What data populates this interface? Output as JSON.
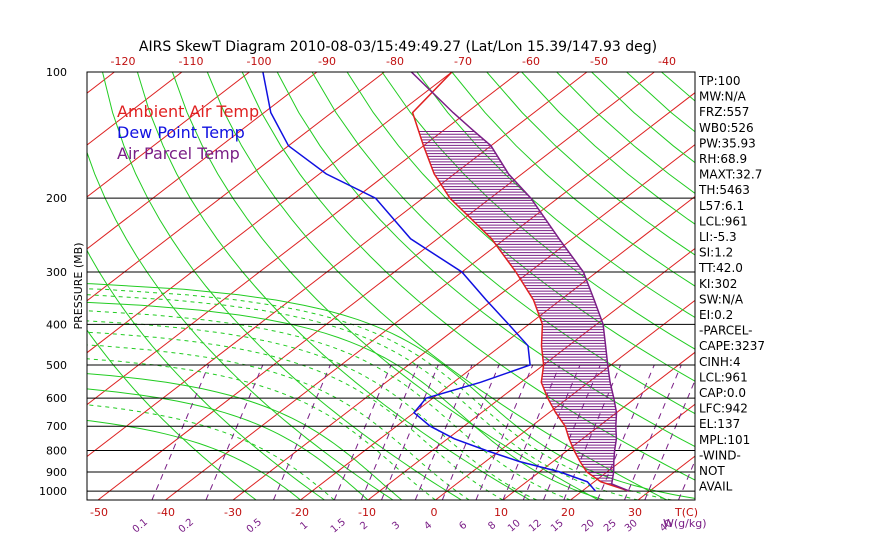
{
  "chart_data": {
    "type": "line",
    "title": "AIRS SkewT Diagram 2010-08-03/15:49:49.27 (Lat/Lon 15.39/147.93 deg)",
    "ylabel": "PRESSURE (MB)",
    "xlabel": "T(C)",
    "mixing_ratio_label": "W(g/kg)",
    "pressure_ticks": [
      100,
      200,
      300,
      400,
      500,
      600,
      700,
      800,
      900,
      1000
    ],
    "bottom_temp_ticks": [
      -50,
      -40,
      -30,
      -20,
      -10,
      0,
      10,
      20,
      30
    ],
    "top_temp_ticks": [
      -120,
      -110,
      -100,
      -90,
      -80,
      -70,
      -60,
      -50,
      -40
    ],
    "mixing_ratio_ticks": [
      "0.1",
      "0.2",
      "0.5",
      "1",
      "1.5",
      "2",
      "3",
      "4",
      "6",
      "8",
      "10",
      "12",
      "15",
      "20",
      "25",
      "30",
      "40"
    ],
    "legend": [
      {
        "name": "Ambient Air Temp",
        "color": "#e02020"
      },
      {
        "name": "Dew Point Temp",
        "color": "#1010e0"
      },
      {
        "name": "Air Parcel Temp",
        "color": "#7a1e86"
      }
    ],
    "series": [
      {
        "name": "Ambient Air Temp",
        "color": "#e02020",
        "points": [
          [
            1000,
            27
          ],
          [
            950,
            21
          ],
          [
            900,
            17
          ],
          [
            850,
            14
          ],
          [
            800,
            11
          ],
          [
            750,
            8
          ],
          [
            700,
            5
          ],
          [
            650,
            1
          ],
          [
            600,
            -3
          ],
          [
            550,
            -7
          ],
          [
            500,
            -10
          ],
          [
            450,
            -14
          ],
          [
            400,
            -18
          ],
          [
            350,
            -24
          ],
          [
            300,
            -32
          ],
          [
            250,
            -42
          ],
          [
            200,
            -56
          ],
          [
            175,
            -63
          ],
          [
            150,
            -70
          ],
          [
            125,
            -78
          ],
          [
            100,
            -80
          ]
        ]
      },
      {
        "name": "Dew Point Temp",
        "color": "#1010e0",
        "points": [
          [
            1000,
            22
          ],
          [
            950,
            19
          ],
          [
            900,
            13
          ],
          [
            850,
            5
          ],
          [
            800,
            -2
          ],
          [
            750,
            -9
          ],
          [
            700,
            -15
          ],
          [
            650,
            -20
          ],
          [
            600,
            -21
          ],
          [
            550,
            -16
          ],
          [
            500,
            -12
          ],
          [
            450,
            -16
          ],
          [
            400,
            -23
          ],
          [
            350,
            -31
          ],
          [
            300,
            -40
          ],
          [
            250,
            -54
          ],
          [
            200,
            -67
          ],
          [
            175,
            -79
          ],
          [
            150,
            -90
          ],
          [
            125,
            -99
          ],
          [
            100,
            -108
          ]
        ]
      },
      {
        "name": "Air Parcel Temp",
        "color": "#7a1e86",
        "points": [
          [
            1000,
            27
          ],
          [
            961,
            23
          ],
          [
            900,
            21
          ],
          [
            850,
            19
          ],
          [
            800,
            17
          ],
          [
            750,
            15
          ],
          [
            700,
            12.5
          ],
          [
            650,
            10
          ],
          [
            600,
            6.8
          ],
          [
            550,
            3.2
          ],
          [
            500,
            -0.5
          ],
          [
            450,
            -4.5
          ],
          [
            400,
            -9
          ],
          [
            350,
            -15
          ],
          [
            300,
            -22
          ],
          [
            250,
            -32
          ],
          [
            200,
            -44
          ],
          [
            175,
            -52
          ],
          [
            150,
            -60
          ],
          [
            137,
            -66
          ],
          [
            125,
            -72
          ],
          [
            100,
            -86
          ]
        ]
      }
    ],
    "indices": [
      "TP:100",
      "MW:N/A",
      "FRZ:557",
      "WB0:526",
      "PW:35.93",
      "RH:68.9",
      "MAXT:32.7",
      "TH:5463",
      "L57:6.1",
      "LCL:961",
      "LI:-5.3",
      "SI:1.2",
      "TT:42.0",
      "KI:302",
      "SW:N/A",
      "EI:0.2",
      "-PARCEL-",
      "CAPE:3237",
      "CINH:4",
      "LCL:961",
      "CAP:0.0",
      "LFC:942",
      "EL:137",
      "MPL:101",
      "-WIND-",
      "NOT",
      "AVAIL"
    ]
  }
}
